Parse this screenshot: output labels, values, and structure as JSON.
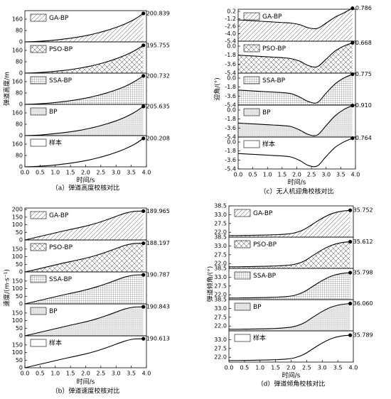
{
  "chart_data": [
    {
      "type": "area",
      "caption": "（a）弹道高度校核对比",
      "xlabel": "时间/s",
      "ylabel": "弹道高度/m",
      "x": [
        0,
        0.3,
        0.6,
        0.9,
        1.2,
        1.5,
        1.8,
        2.1,
        2.4,
        2.7,
        3.0,
        3.3,
        3.6,
        3.9
      ],
      "xlim": [
        0,
        4
      ],
      "xticks": [
        {
          "value": 0,
          "label": "0.0"
        },
        0.5,
        {
          "value": 1,
          "label": "1.0"
        },
        1.5,
        {
          "value": 2,
          "label": "2.0"
        },
        2.5,
        {
          "value": 3,
          "label": "3.0"
        },
        3.5,
        {
          "value": 4,
          "label": "4.0"
        }
      ],
      "series": [
        {
          "name": "GA-BP",
          "pattern": "diag",
          "ylim": [
            0,
            220
          ],
          "yticks": [
            0,
            80,
            160
          ],
          "values": [
            0,
            2,
            6,
            11,
            18,
            26,
            36,
            48,
            63,
            81,
            102,
            127,
            158,
            200.839
          ]
        },
        {
          "name": "PSO-BP",
          "pattern": "cross",
          "ylim": [
            0,
            220
          ],
          "yticks": [
            0,
            80,
            160
          ],
          "values": [
            0,
            2,
            6,
            11,
            17,
            25,
            35,
            47,
            62,
            80,
            101,
            126,
            157,
            195.755
          ]
        },
        {
          "name": "SSA-BP",
          "pattern": "grid",
          "ylim": [
            0,
            220
          ],
          "yticks": [
            0,
            80,
            160
          ],
          "values": [
            0,
            2,
            6,
            11,
            18,
            26,
            36,
            48,
            63,
            81,
            102,
            127,
            160,
            200.732
          ]
        },
        {
          "name": "BP",
          "pattern": "dots",
          "ylim": [
            0,
            220
          ],
          "yticks": [
            0,
            80,
            160
          ],
          "values": [
            0,
            2,
            6,
            12,
            19,
            27,
            37,
            50,
            65,
            83,
            104,
            130,
            163,
            205.635
          ]
        },
        {
          "name": "样本",
          "pattern": "none",
          "ylim": [
            0,
            220
          ],
          "yticks": [
            0,
            80,
            160
          ],
          "values": [
            0,
            2,
            6,
            11,
            18,
            26,
            36,
            48,
            63,
            81,
            102,
            127,
            158,
            200.208
          ]
        }
      ]
    },
    {
      "type": "area",
      "caption": "（c）无人机迎角校核对比",
      "xlabel": "时间/s",
      "ylabel": "迎角/(°)",
      "x": [
        0,
        0.3,
        0.6,
        0.9,
        1.2,
        1.5,
        1.8,
        2.1,
        2.4,
        2.7,
        3.0,
        3.3,
        3.6,
        3.9
      ],
      "xlim": [
        0,
        4
      ],
      "xticks": [
        {
          "value": 0,
          "label": "0.0"
        },
        0.5,
        {
          "value": 1,
          "label": "1.0"
        },
        1.5,
        {
          "value": 2,
          "label": "2.0"
        },
        2.5,
        {
          "value": 3,
          "label": "3.0"
        },
        3.5,
        {
          "value": 4,
          "label": "4.0"
        }
      ],
      "series": [
        {
          "name": "GA-BP",
          "pattern": "diag",
          "ylim": [
            -5.4,
            0.6
          ],
          "yticks": [
            -5.4,
            {
              "value": -4,
              "label": "-4.0"
            },
            -2.6,
            -1.2,
            0.2
          ],
          "values": [
            -1.4,
            -1.5,
            -1.6,
            -1.7,
            -1.8,
            -1.9,
            -2.0,
            -2.3,
            -2.9,
            -3.0,
            -2.0,
            -0.9,
            -0.1,
            0.786
          ]
        },
        {
          "name": "PSO-BP",
          "pattern": "cross",
          "ylim": [
            -5.4,
            1.0
          ],
          "yticks": [
            -5.4,
            -3.6,
            -1.8,
            {
              "value": 0,
              "label": "0.0"
            }
          ],
          "values": [
            -1.8,
            -1.9,
            -2.0,
            -2.1,
            -2.2,
            -2.3,
            -2.5,
            -3.0,
            -3.9,
            -4.1,
            -2.6,
            -1.0,
            0.0,
            0.668
          ]
        },
        {
          "name": "SSA-BP",
          "pattern": "grid",
          "ylim": [
            -5.4,
            1.0
          ],
          "yticks": [
            -5.4,
            -3.6,
            -1.8,
            {
              "value": 0,
              "label": "0.0"
            }
          ],
          "values": [
            -2.4,
            -2.5,
            -2.6,
            -2.7,
            -2.8,
            -2.9,
            -3.1,
            -3.8,
            -4.7,
            -4.9,
            -3.0,
            -1.2,
            0.0,
            0.775
          ]
        },
        {
          "name": "BP",
          "pattern": "dots",
          "ylim": [
            -5.4,
            1.0
          ],
          "yticks": [
            -5.4,
            -3.6,
            -1.8,
            {
              "value": 0,
              "label": "0.0"
            }
          ],
          "values": [
            -2.6,
            -2.7,
            -2.8,
            -2.9,
            -3.0,
            -3.1,
            -3.3,
            -4.0,
            -4.9,
            -5.0,
            -3.1,
            -1.2,
            0.1,
            0.91
          ],
          "value_labels": [
            null,
            null,
            null,
            null,
            null,
            null,
            null,
            null,
            null,
            null,
            null,
            null,
            null,
            "0.910"
          ]
        },
        {
          "name": "样本",
          "pattern": "none",
          "ylim": [
            -5.4,
            1.0
          ],
          "yticks": [
            -5.4,
            -3.6,
            -1.8,
            {
              "value": 0,
              "label": "0.0"
            }
          ],
          "values": [
            -2.3,
            -2.4,
            -2.5,
            -2.6,
            -2.7,
            -2.8,
            -3.0,
            -3.7,
            -4.7,
            -4.8,
            -2.9,
            -1.1,
            0.0,
            0.764
          ]
        }
      ]
    },
    {
      "type": "area",
      "caption": "（b）弹道速度校核对比",
      "xlabel": "时间/s",
      "ylabel": "速度/(m·s⁻¹)",
      "x": [
        0,
        0.3,
        0.6,
        0.9,
        1.2,
        1.5,
        1.8,
        2.1,
        2.4,
        2.7,
        3.0,
        3.3,
        3.6,
        3.9
      ],
      "xlim": [
        0,
        4
      ],
      "xticks": [
        {
          "value": 0,
          "label": "0.0"
        },
        0.5,
        {
          "value": 1,
          "label": "1.0"
        },
        1.5,
        {
          "value": 2,
          "label": "2.0"
        },
        2.5,
        {
          "value": 3,
          "label": "3.0"
        },
        3.5,
        {
          "value": 4,
          "label": "4.0"
        }
      ],
      "series": [
        {
          "name": "GA-BP",
          "pattern": "diag",
          "ylim": [
            0,
            210
          ],
          "yticks": [
            0,
            50,
            100,
            150,
            200
          ],
          "values": [
            0,
            14,
            28,
            42,
            56,
            69,
            82,
            96,
            113,
            133,
            155,
            176,
            188,
            189.965
          ]
        },
        {
          "name": "PSO-BP",
          "pattern": "cross",
          "ylim": [
            0,
            210
          ],
          "yticks": [
            0,
            50,
            100,
            150
          ],
          "values": [
            0,
            13,
            27,
            41,
            55,
            68,
            81,
            95,
            112,
            132,
            154,
            175,
            187,
            188.197
          ]
        },
        {
          "name": "SSA-BP",
          "pattern": "grid",
          "ylim": [
            0,
            210
          ],
          "yticks": [
            0,
            50,
            100,
            150
          ],
          "values": [
            0,
            14,
            28,
            42,
            56,
            69,
            82,
            97,
            114,
            134,
            156,
            177,
            189,
            190.787
          ]
        },
        {
          "name": "BP",
          "pattern": "dots",
          "ylim": [
            0,
            210
          ],
          "yticks": [
            0,
            50,
            100,
            150
          ],
          "values": [
            0,
            14,
            28,
            42,
            56,
            70,
            83,
            97,
            114,
            134,
            156,
            177,
            189,
            190.843
          ]
        },
        {
          "name": "样本",
          "pattern": "none",
          "ylim": [
            0,
            210
          ],
          "yticks": [
            0,
            50,
            100,
            150
          ],
          "values": [
            0,
            14,
            28,
            42,
            56,
            69,
            82,
            96,
            113,
            133,
            155,
            176,
            189,
            190.613
          ]
        }
      ]
    },
    {
      "type": "area",
      "caption": "（d）弹道倾角校核对比",
      "xlabel": "时间/s",
      "ylabel": "弹道倾角/(°)",
      "x": [
        0,
        0.3,
        0.6,
        0.9,
        1.2,
        1.5,
        1.8,
        2.1,
        2.4,
        2.7,
        3.0,
        3.3,
        3.6,
        3.9
      ],
      "xlim": [
        0,
        4
      ],
      "xticks": [
        {
          "value": 0,
          "label": "0.0"
        },
        0.5,
        {
          "value": 1,
          "label": "1.0"
        },
        1.5,
        {
          "value": 2,
          "label": "2.0"
        },
        2.5,
        {
          "value": 3,
          "label": "3.0"
        },
        3.5,
        {
          "value": 4,
          "label": "4.0"
        }
      ],
      "series": [
        {
          "name": "GA-BP",
          "pattern": "diag",
          "ylim": [
            19,
            38.5
          ],
          "yticks": [
            {
              "value": 22,
              "label": "22.0"
            },
            27.5,
            {
              "value": 33,
              "label": "33.0"
            },
            38.5
          ],
          "values": [
            20,
            20,
            20.1,
            20.2,
            20.3,
            20.5,
            20.8,
            21.6,
            23.6,
            27.2,
            30.8,
            33.6,
            35.1,
            35.752
          ]
        },
        {
          "name": "PSO-BP",
          "pattern": "cross",
          "ylim": [
            19,
            38.5
          ],
          "yticks": [
            {
              "value": 22,
              "label": "22.0"
            },
            27.5,
            {
              "value": 33,
              "label": "33.0"
            },
            38.5
          ],
          "values": [
            20,
            20,
            20.1,
            20.2,
            20.3,
            20.5,
            20.8,
            21.5,
            23.4,
            27.0,
            30.6,
            33.4,
            35.0,
            35.612
          ]
        },
        {
          "name": "SSA-BP",
          "pattern": "grid",
          "ylim": [
            19,
            38.5
          ],
          "yticks": [
            {
              "value": 22,
              "label": "22.0"
            },
            27.5,
            {
              "value": 33,
              "label": "33.0"
            },
            38.5
          ],
          "values": [
            20,
            20,
            20.1,
            20.2,
            20.3,
            20.5,
            20.8,
            21.6,
            23.7,
            27.3,
            30.9,
            33.7,
            35.2,
            35.798
          ]
        },
        {
          "name": "BP",
          "pattern": "dots",
          "ylim": [
            19,
            38.5
          ],
          "yticks": [
            {
              "value": 22,
              "label": "22.0"
            },
            27.5,
            {
              "value": 33,
              "label": "33.0"
            },
            38.5
          ],
          "values": [
            20,
            20,
            20.1,
            20.2,
            20.3,
            20.5,
            20.9,
            21.7,
            23.8,
            27.5,
            31.1,
            33.9,
            35.4,
            36.06
          ],
          "value_labels": [
            null,
            null,
            null,
            null,
            null,
            null,
            null,
            null,
            null,
            null,
            null,
            null,
            null,
            "36.060"
          ]
        },
        {
          "name": "样本",
          "pattern": "none",
          "ylim": [
            19,
            38.5
          ],
          "yticks": [
            {
              "value": 22,
              "label": "22.0"
            },
            27.5,
            {
              "value": 33,
              "label": "33.0"
            }
          ],
          "values": [
            20,
            20,
            20.1,
            20.2,
            20.3,
            20.5,
            20.8,
            21.6,
            23.7,
            27.3,
            30.9,
            33.7,
            35.2,
            35.789
          ]
        }
      ]
    }
  ]
}
